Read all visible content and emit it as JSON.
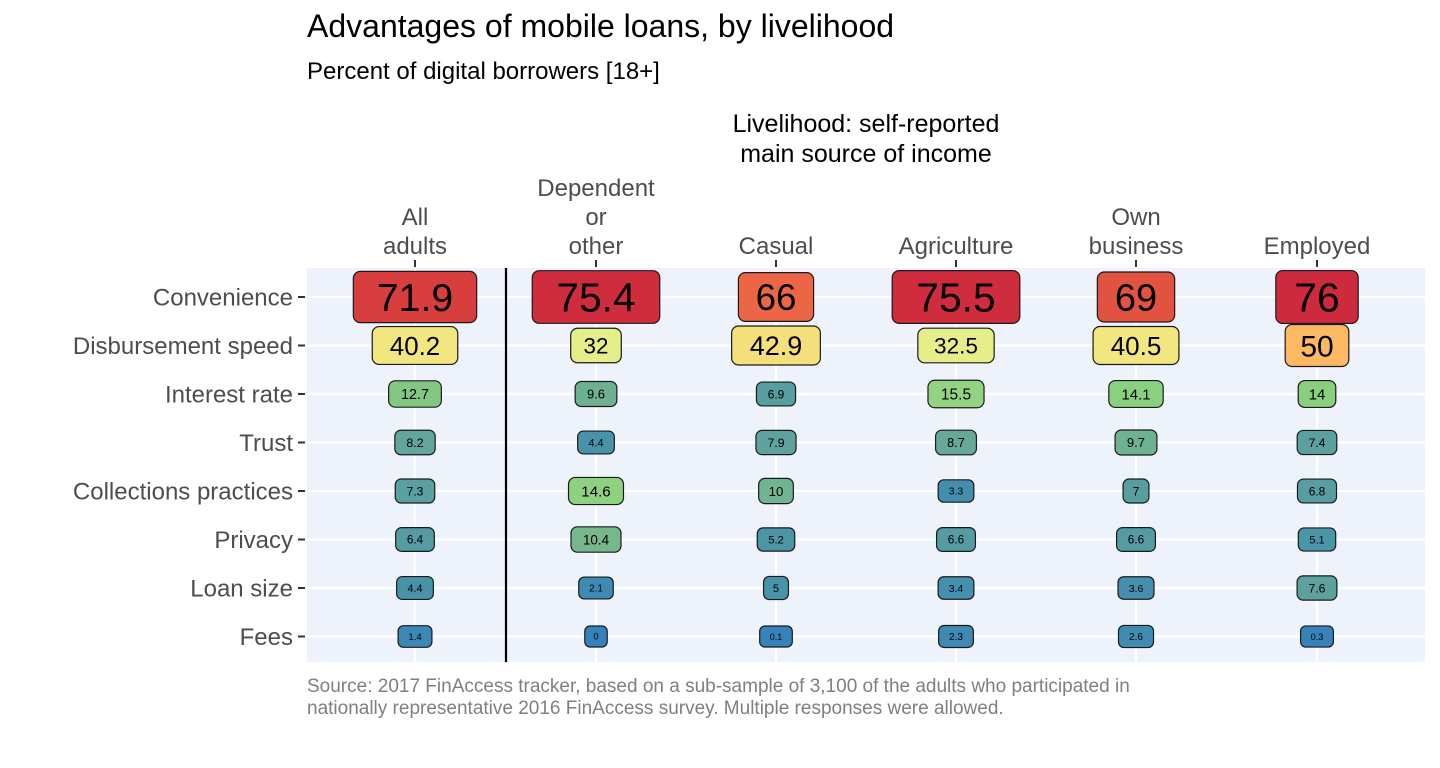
{
  "title": "Advantages of mobile loans, by livelihood",
  "subtitle": "Percent of digital borrowers [18+]",
  "caption": "Source: 2017 FinAccess tracker, based on a sub-sample of 3,100 of the adults who participated in nationally representative 2016 FinAccess survey. Multiple responses were allowed.",
  "chart_data": {
    "type": "heatmap",
    "group_label": [
      "Livelihood: self-reported",
      "main source of income"
    ],
    "columns": [
      {
        "key": "all",
        "label": [
          "All",
          "adults"
        ]
      },
      {
        "key": "dependent",
        "label": [
          "Dependent",
          "or",
          "other"
        ]
      },
      {
        "key": "casual",
        "label": [
          "Casual"
        ]
      },
      {
        "key": "agriculture",
        "label": [
          "Agriculture"
        ]
      },
      {
        "key": "own_business",
        "label": [
          "Own",
          "business"
        ]
      },
      {
        "key": "employed",
        "label": [
          "Employed"
        ]
      }
    ],
    "rows": [
      "Convenience",
      "Disbursement speed",
      "Interest rate",
      "Trust",
      "Collections practices",
      "Privacy",
      "Loan size",
      "Fees"
    ],
    "values": [
      [
        71.9,
        75.4,
        66,
        75.5,
        69,
        76
      ],
      [
        40.2,
        32,
        42.9,
        32.5,
        40.5,
        50
      ],
      [
        12.7,
        9.6,
        6.9,
        15.5,
        14.1,
        14
      ],
      [
        8.2,
        4.4,
        7.9,
        8.7,
        9.7,
        7.4
      ],
      [
        7.3,
        14.6,
        10,
        3.3,
        7,
        6.8
      ],
      [
        6.4,
        10.4,
        5.2,
        6.6,
        6.6,
        5.1
      ],
      [
        4.4,
        2.1,
        5,
        3.4,
        3.6,
        7.6
      ],
      [
        1.4,
        0,
        0.1,
        2.3,
        2.6,
        0.3
      ]
    ],
    "value_labels": [
      [
        "71.9",
        "75.4",
        "66",
        "75.5",
        "69",
        "76"
      ],
      [
        "40.2",
        "32",
        "42.9",
        "32.5",
        "40.5",
        "50"
      ],
      [
        "12.7",
        "9.6",
        "6.9",
        "15.5",
        "14.1",
        "14"
      ],
      [
        "8.2",
        "4.4",
        "7.9",
        "8.7",
        "9.7",
        "7.4"
      ],
      [
        "7.3",
        "14.6",
        "10",
        "3.3",
        "7",
        "6.8"
      ],
      [
        "6.4",
        "10.4",
        "5.2",
        "6.6",
        "6.6",
        "5.1"
      ],
      [
        "4.4",
        "2.1",
        "5",
        "3.4",
        "3.6",
        "7.6"
      ],
      [
        "1.4",
        "0",
        "0.1",
        "2.3",
        "2.6",
        "0.3"
      ]
    ],
    "divider_after_column": "all",
    "color_scale": {
      "palette": "Spectral (reversed)",
      "stops": [
        {
          "value": 0,
          "color": "#3682ba"
        },
        {
          "value": 5,
          "color": "#4a94a8"
        },
        {
          "value": 8,
          "color": "#5fa39d"
        },
        {
          "value": 11,
          "color": "#7cbd88"
        },
        {
          "value": 14,
          "color": "#8acf80"
        },
        {
          "value": 18,
          "color": "#a4d986"
        },
        {
          "value": 30,
          "color": "#e3f08c"
        },
        {
          "value": 42,
          "color": "#f3e47e"
        },
        {
          "value": 50,
          "color": "#fdb863"
        },
        {
          "value": 66,
          "color": "#ec6544"
        },
        {
          "value": 70,
          "color": "#df4c40"
        },
        {
          "value": 73,
          "color": "#d6363d"
        },
        {
          "value": 76,
          "color": "#cd2a3d"
        }
      ]
    },
    "panel_background": "#eef3fb",
    "gridline_color": "#ffffff"
  }
}
